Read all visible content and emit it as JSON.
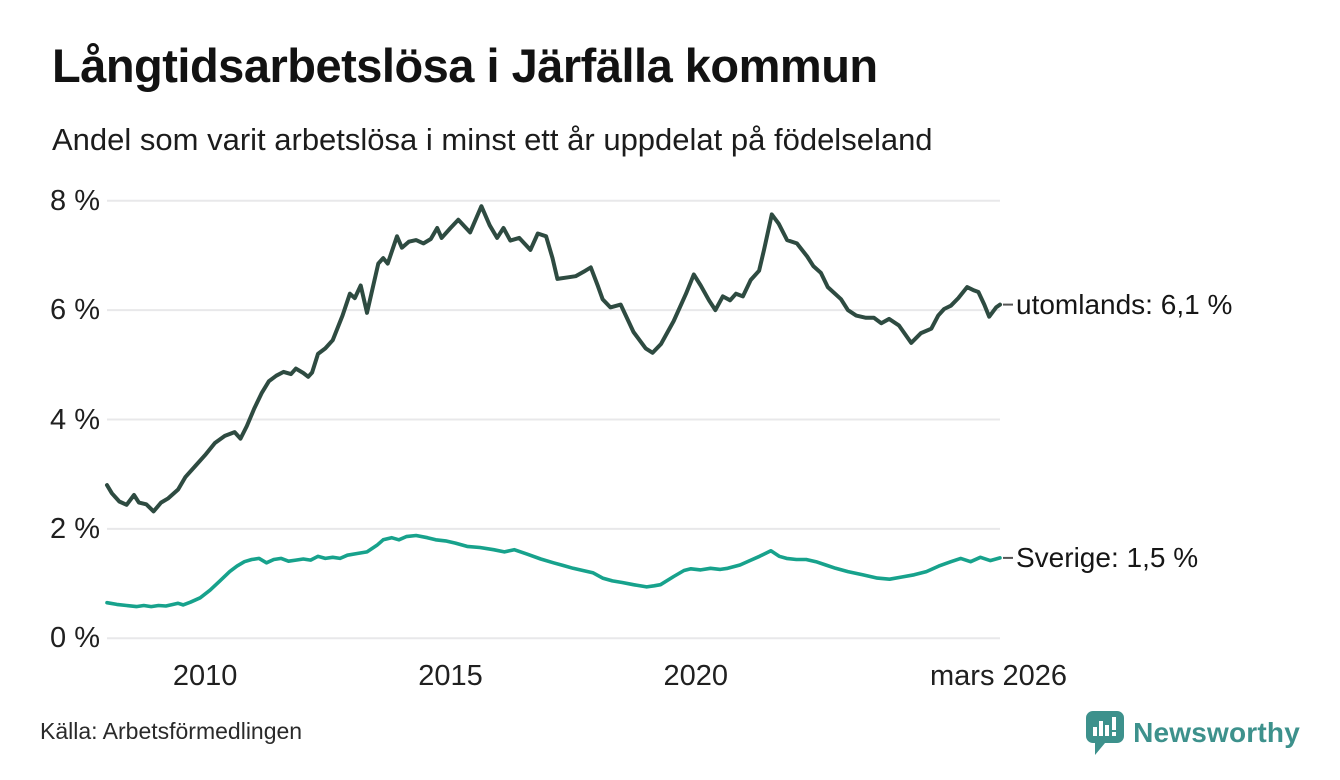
{
  "header": {
    "title": "Långtidsarbetslösa i Järfälla kommun",
    "subtitle": "Andel som varit arbetslösa i minst ett år uppdelat på födelseland"
  },
  "footer": {
    "source": "Källa: Arbetsförmedlingen",
    "brand_name": "Newsworthy",
    "brand_icon": "speech-bubble-bar-chart-icon"
  },
  "colors": {
    "background": "#ffffff",
    "grid": "#e8e8ea",
    "text": "#1a1a1a",
    "label_dash": "#555555",
    "series_utomlands": "#2e4b41",
    "series_sverige": "#17a28c",
    "brand_teal": "#3d918c"
  },
  "chart_data": {
    "type": "line",
    "title": "Långtidsarbetslösa i Järfälla kommun",
    "subtitle": "Andel som varit arbetslösa i minst ett år uppdelat på födelseland",
    "grid": true,
    "legend_position": "end-of-line-labels-right",
    "x_axis": {
      "range": [
        2008.0,
        2026.2
      ],
      "ticks": [
        {
          "year": 2010,
          "label": "2010"
        },
        {
          "year": 2015,
          "label": "2015"
        },
        {
          "year": 2020,
          "label": "2020"
        },
        {
          "year": 2026.17,
          "label": "mars 2026"
        }
      ]
    },
    "y_axis": {
      "unit": "%",
      "range": [
        0,
        8
      ],
      "ticks": [
        {
          "value": 8,
          "label": "8 %"
        },
        {
          "value": 6,
          "label": "6 %"
        },
        {
          "value": 4,
          "label": "4 %"
        },
        {
          "value": 2,
          "label": "2 %"
        },
        {
          "value": 0,
          "label": "0 %"
        }
      ]
    },
    "series": [
      {
        "name": "utomlands",
        "end_label": "utomlands: 6,1 %",
        "latest_value": 6.1,
        "color": "#2e4b41",
        "line_width": 4,
        "points": [
          [
            2008.0,
            2.8
          ],
          [
            2008.1,
            2.65
          ],
          [
            2008.25,
            2.5
          ],
          [
            2008.4,
            2.44
          ],
          [
            2008.55,
            2.62
          ],
          [
            2008.65,
            2.48
          ],
          [
            2008.8,
            2.45
          ],
          [
            2008.95,
            2.32
          ],
          [
            2009.1,
            2.48
          ],
          [
            2009.25,
            2.56
          ],
          [
            2009.45,
            2.72
          ],
          [
            2009.6,
            2.95
          ],
          [
            2009.8,
            3.15
          ],
          [
            2010.0,
            3.35
          ],
          [
            2010.2,
            3.57
          ],
          [
            2010.4,
            3.7
          ],
          [
            2010.6,
            3.77
          ],
          [
            2010.72,
            3.65
          ],
          [
            2010.85,
            3.88
          ],
          [
            2011.0,
            4.2
          ],
          [
            2011.15,
            4.48
          ],
          [
            2011.3,
            4.7
          ],
          [
            2011.45,
            4.8
          ],
          [
            2011.6,
            4.87
          ],
          [
            2011.75,
            4.83
          ],
          [
            2011.85,
            4.93
          ],
          [
            2012.0,
            4.85
          ],
          [
            2012.1,
            4.78
          ],
          [
            2012.18,
            4.86
          ],
          [
            2012.3,
            5.2
          ],
          [
            2012.45,
            5.3
          ],
          [
            2012.6,
            5.45
          ],
          [
            2012.8,
            5.9
          ],
          [
            2012.95,
            6.3
          ],
          [
            2013.05,
            6.22
          ],
          [
            2013.17,
            6.45
          ],
          [
            2013.3,
            5.95
          ],
          [
            2013.53,
            6.85
          ],
          [
            2013.63,
            6.95
          ],
          [
            2013.72,
            6.85
          ],
          [
            2013.91,
            7.35
          ],
          [
            2014.01,
            7.14
          ],
          [
            2014.15,
            7.25
          ],
          [
            2014.3,
            7.28
          ],
          [
            2014.45,
            7.22
          ],
          [
            2014.6,
            7.3
          ],
          [
            2014.73,
            7.5
          ],
          [
            2014.82,
            7.32
          ],
          [
            2015.0,
            7.5
          ],
          [
            2015.16,
            7.65
          ],
          [
            2015.4,
            7.42
          ],
          [
            2015.63,
            7.9
          ],
          [
            2015.8,
            7.55
          ],
          [
            2015.95,
            7.32
          ],
          [
            2016.08,
            7.5
          ],
          [
            2016.22,
            7.27
          ],
          [
            2016.4,
            7.32
          ],
          [
            2016.63,
            7.1
          ],
          [
            2016.78,
            7.4
          ],
          [
            2016.95,
            7.35
          ],
          [
            2017.08,
            6.95
          ],
          [
            2017.18,
            6.57
          ],
          [
            2017.4,
            6.6
          ],
          [
            2017.55,
            6.62
          ],
          [
            2017.75,
            6.72
          ],
          [
            2017.86,
            6.78
          ],
          [
            2018.0,
            6.45
          ],
          [
            2018.1,
            6.2
          ],
          [
            2018.26,
            6.05
          ],
          [
            2018.47,
            6.1
          ],
          [
            2018.73,
            5.6
          ],
          [
            2018.98,
            5.3
          ],
          [
            2019.12,
            5.22
          ],
          [
            2019.29,
            5.38
          ],
          [
            2019.55,
            5.8
          ],
          [
            2019.8,
            6.3
          ],
          [
            2019.96,
            6.65
          ],
          [
            2020.1,
            6.45
          ],
          [
            2020.27,
            6.18
          ],
          [
            2020.4,
            6.0
          ],
          [
            2020.55,
            6.25
          ],
          [
            2020.7,
            6.18
          ],
          [
            2020.82,
            6.3
          ],
          [
            2020.96,
            6.25
          ],
          [
            2021.12,
            6.55
          ],
          [
            2021.29,
            6.72
          ],
          [
            2021.39,
            7.1
          ],
          [
            2021.55,
            7.75
          ],
          [
            2021.69,
            7.58
          ],
          [
            2021.86,
            7.28
          ],
          [
            2022.06,
            7.22
          ],
          [
            2022.27,
            6.98
          ],
          [
            2022.4,
            6.8
          ],
          [
            2022.55,
            6.68
          ],
          [
            2022.69,
            6.42
          ],
          [
            2022.96,
            6.2
          ],
          [
            2023.1,
            6.0
          ],
          [
            2023.27,
            5.9
          ],
          [
            2023.47,
            5.86
          ],
          [
            2023.63,
            5.86
          ],
          [
            2023.78,
            5.76
          ],
          [
            2023.94,
            5.84
          ],
          [
            2024.14,
            5.72
          ],
          [
            2024.39,
            5.4
          ],
          [
            2024.59,
            5.58
          ],
          [
            2024.8,
            5.66
          ],
          [
            2024.94,
            5.9
          ],
          [
            2025.06,
            6.02
          ],
          [
            2025.2,
            6.08
          ],
          [
            2025.35,
            6.22
          ],
          [
            2025.53,
            6.42
          ],
          [
            2025.67,
            6.36
          ],
          [
            2025.76,
            6.33
          ],
          [
            2025.88,
            6.1
          ],
          [
            2025.98,
            5.88
          ],
          [
            2026.12,
            6.05
          ],
          [
            2026.2,
            6.1
          ]
        ]
      },
      {
        "name": "Sverige",
        "end_label": "Sverige: 1,5 %",
        "latest_value": 1.5,
        "color": "#17a28c",
        "line_width": 3.6,
        "points": [
          [
            2008.0,
            0.65
          ],
          [
            2008.2,
            0.62
          ],
          [
            2008.4,
            0.6
          ],
          [
            2008.6,
            0.58
          ],
          [
            2008.75,
            0.6
          ],
          [
            2008.9,
            0.58
          ],
          [
            2009.05,
            0.6
          ],
          [
            2009.2,
            0.59
          ],
          [
            2009.35,
            0.62
          ],
          [
            2009.45,
            0.64
          ],
          [
            2009.55,
            0.61
          ],
          [
            2009.7,
            0.66
          ],
          [
            2009.9,
            0.74
          ],
          [
            2010.1,
            0.88
          ],
          [
            2010.3,
            1.05
          ],
          [
            2010.5,
            1.22
          ],
          [
            2010.65,
            1.32
          ],
          [
            2010.8,
            1.4
          ],
          [
            2010.95,
            1.44
          ],
          [
            2011.1,
            1.46
          ],
          [
            2011.25,
            1.38
          ],
          [
            2011.4,
            1.44
          ],
          [
            2011.55,
            1.46
          ],
          [
            2011.7,
            1.41
          ],
          [
            2011.85,
            1.43
          ],
          [
            2012.0,
            1.45
          ],
          [
            2012.15,
            1.43
          ],
          [
            2012.3,
            1.5
          ],
          [
            2012.45,
            1.46
          ],
          [
            2012.6,
            1.48
          ],
          [
            2012.75,
            1.46
          ],
          [
            2012.9,
            1.52
          ],
          [
            2013.1,
            1.55
          ],
          [
            2013.3,
            1.58
          ],
          [
            2013.5,
            1.7
          ],
          [
            2013.63,
            1.8
          ],
          [
            2013.8,
            1.84
          ],
          [
            2013.95,
            1.8
          ],
          [
            2014.1,
            1.86
          ],
          [
            2014.3,
            1.88
          ],
          [
            2014.53,
            1.84
          ],
          [
            2014.7,
            1.8
          ],
          [
            2014.9,
            1.78
          ],
          [
            2015.1,
            1.74
          ],
          [
            2015.34,
            1.68
          ],
          [
            2015.6,
            1.66
          ],
          [
            2015.88,
            1.62
          ],
          [
            2016.1,
            1.58
          ],
          [
            2016.3,
            1.62
          ],
          [
            2016.56,
            1.54
          ],
          [
            2016.84,
            1.45
          ],
          [
            2017.1,
            1.38
          ],
          [
            2017.3,
            1.33
          ],
          [
            2017.5,
            1.28
          ],
          [
            2017.7,
            1.24
          ],
          [
            2017.9,
            1.2
          ],
          [
            2018.1,
            1.1
          ],
          [
            2018.3,
            1.05
          ],
          [
            2018.5,
            1.02
          ],
          [
            2018.73,
            0.98
          ],
          [
            2019.0,
            0.94
          ],
          [
            2019.15,
            0.96
          ],
          [
            2019.28,
            0.98
          ],
          [
            2019.55,
            1.13
          ],
          [
            2019.76,
            1.24
          ],
          [
            2019.9,
            1.27
          ],
          [
            2020.1,
            1.25
          ],
          [
            2020.3,
            1.28
          ],
          [
            2020.5,
            1.26
          ],
          [
            2020.65,
            1.28
          ],
          [
            2020.9,
            1.34
          ],
          [
            2021.1,
            1.42
          ],
          [
            2021.3,
            1.5
          ],
          [
            2021.53,
            1.6
          ],
          [
            2021.7,
            1.5
          ],
          [
            2021.85,
            1.46
          ],
          [
            2022.05,
            1.44
          ],
          [
            2022.25,
            1.44
          ],
          [
            2022.45,
            1.4
          ],
          [
            2022.65,
            1.34
          ],
          [
            2022.85,
            1.28
          ],
          [
            2023.1,
            1.22
          ],
          [
            2023.4,
            1.16
          ],
          [
            2023.7,
            1.1
          ],
          [
            2023.95,
            1.08
          ],
          [
            2024.2,
            1.12
          ],
          [
            2024.45,
            1.16
          ],
          [
            2024.7,
            1.22
          ],
          [
            2024.95,
            1.32
          ],
          [
            2025.2,
            1.4
          ],
          [
            2025.4,
            1.46
          ],
          [
            2025.6,
            1.4
          ],
          [
            2025.8,
            1.48
          ],
          [
            2026.0,
            1.42
          ],
          [
            2026.2,
            1.47
          ]
        ]
      }
    ]
  }
}
